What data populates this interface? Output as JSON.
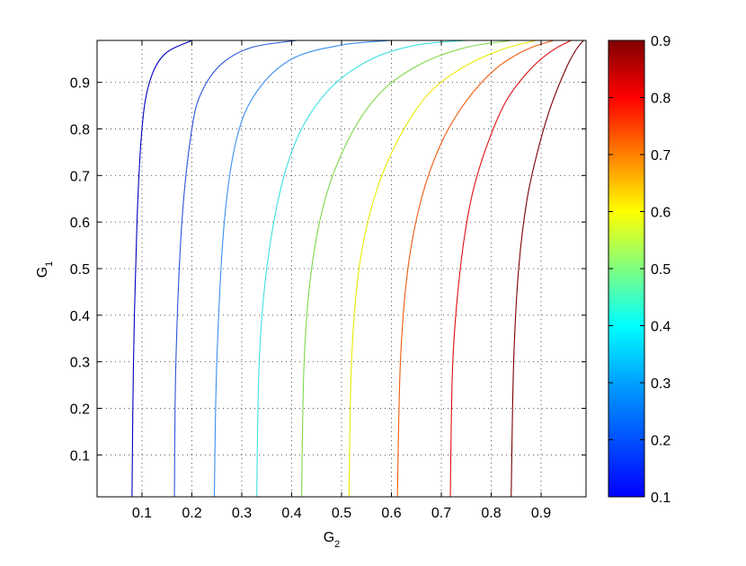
{
  "chart_data": {
    "type": "contour",
    "xlabel": "G",
    "xlabel_sub": "2",
    "ylabel": "G",
    "ylabel_sub": "1",
    "xlim": [
      0.01,
      0.99
    ],
    "ylim": [
      0.01,
      0.99
    ],
    "xticks": [
      0.1,
      0.2,
      0.3,
      0.4,
      0.5,
      0.6,
      0.7,
      0.8,
      0.9
    ],
    "yticks": [
      0.1,
      0.2,
      0.3,
      0.4,
      0.5,
      0.6,
      0.7,
      0.8,
      0.9
    ],
    "grid": true,
    "colormap": "jet",
    "colorbar": {
      "range": [
        0.1,
        0.9
      ],
      "ticks": [
        0.1,
        0.2,
        0.3,
        0.4,
        0.5,
        0.6,
        0.7,
        0.8,
        0.9
      ],
      "placement": "right"
    },
    "levels": [
      {
        "level": 0.1,
        "color": "#0000bf",
        "points": [
          [
            0.08,
            0.01
          ],
          [
            0.083,
            0.3
          ],
          [
            0.09,
            0.6
          ],
          [
            0.1,
            0.8
          ],
          [
            0.115,
            0.9
          ],
          [
            0.145,
            0.96
          ],
          [
            0.2,
            0.99
          ]
        ]
      },
      {
        "level": 0.2,
        "color": "#2a55d8",
        "points": [
          [
            0.165,
            0.01
          ],
          [
            0.168,
            0.3
          ],
          [
            0.18,
            0.6
          ],
          [
            0.2,
            0.8
          ],
          [
            0.22,
            0.88
          ],
          [
            0.26,
            0.94
          ],
          [
            0.32,
            0.975
          ],
          [
            0.41,
            0.99
          ]
        ]
      },
      {
        "level": 0.3,
        "color": "#3a8ef0",
        "points": [
          [
            0.245,
            0.01
          ],
          [
            0.25,
            0.3
          ],
          [
            0.265,
            0.6
          ],
          [
            0.29,
            0.78
          ],
          [
            0.33,
            0.88
          ],
          [
            0.4,
            0.95
          ],
          [
            0.5,
            0.98
          ],
          [
            0.6,
            0.99
          ]
        ]
      },
      {
        "level": 0.4,
        "color": "#3fe0e0",
        "points": [
          [
            0.33,
            0.01
          ],
          [
            0.335,
            0.3
          ],
          [
            0.35,
            0.5
          ],
          [
            0.38,
            0.68
          ],
          [
            0.42,
            0.8
          ],
          [
            0.48,
            0.89
          ],
          [
            0.56,
            0.95
          ],
          [
            0.65,
            0.98
          ],
          [
            0.75,
            0.99
          ]
        ]
      },
      {
        "level": 0.5,
        "color": "#7dd84a",
        "points": [
          [
            0.42,
            0.01
          ],
          [
            0.425,
            0.3
          ],
          [
            0.44,
            0.5
          ],
          [
            0.47,
            0.66
          ],
          [
            0.52,
            0.79
          ],
          [
            0.58,
            0.88
          ],
          [
            0.66,
            0.94
          ],
          [
            0.75,
            0.975
          ],
          [
            0.84,
            0.99
          ]
        ]
      },
      {
        "level": 0.6,
        "color": "#e8e800",
        "points": [
          [
            0.515,
            0.01
          ],
          [
            0.52,
            0.3
          ],
          [
            0.535,
            0.5
          ],
          [
            0.565,
            0.65
          ],
          [
            0.61,
            0.77
          ],
          [
            0.67,
            0.87
          ],
          [
            0.74,
            0.93
          ],
          [
            0.82,
            0.97
          ],
          [
            0.89,
            0.99
          ]
        ]
      },
      {
        "level": 0.7,
        "color": "#f05a10",
        "points": [
          [
            0.612,
            0.01
          ],
          [
            0.618,
            0.3
          ],
          [
            0.633,
            0.5
          ],
          [
            0.66,
            0.65
          ],
          [
            0.7,
            0.77
          ],
          [
            0.75,
            0.86
          ],
          [
            0.81,
            0.93
          ],
          [
            0.87,
            0.97
          ],
          [
            0.925,
            0.99
          ]
        ]
      },
      {
        "level": 0.8,
        "color": "#e01010",
        "points": [
          [
            0.718,
            0.01
          ],
          [
            0.723,
            0.3
          ],
          [
            0.738,
            0.5
          ],
          [
            0.76,
            0.65
          ],
          [
            0.79,
            0.76
          ],
          [
            0.83,
            0.86
          ],
          [
            0.88,
            0.93
          ],
          [
            0.925,
            0.97
          ],
          [
            0.96,
            0.99
          ]
        ]
      },
      {
        "level": 0.9,
        "color": "#7a0000",
        "points": [
          [
            0.84,
            0.01
          ],
          [
            0.845,
            0.3
          ],
          [
            0.855,
            0.5
          ],
          [
            0.872,
            0.65
          ],
          [
            0.895,
            0.76
          ],
          [
            0.92,
            0.85
          ],
          [
            0.95,
            0.93
          ],
          [
            0.97,
            0.97
          ],
          [
            0.985,
            0.99
          ]
        ]
      }
    ]
  }
}
